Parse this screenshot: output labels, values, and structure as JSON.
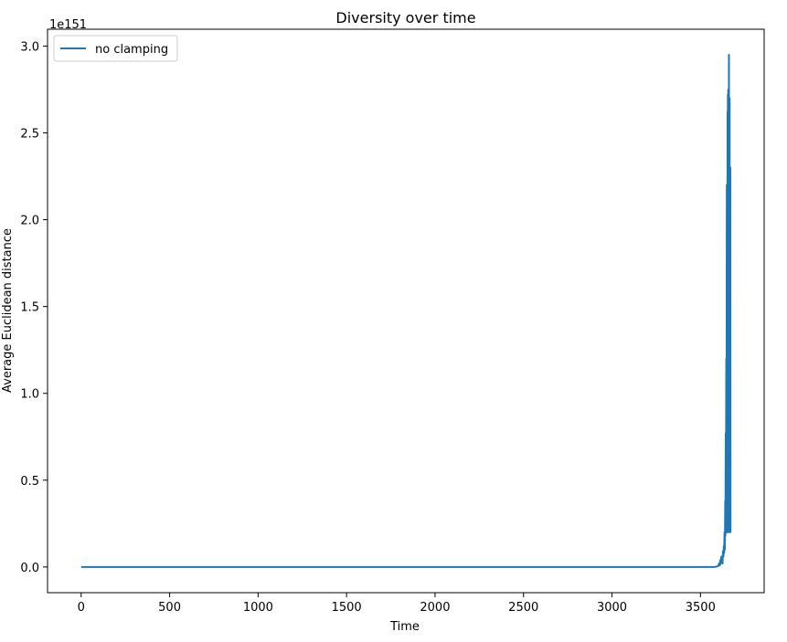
{
  "chart_data": {
    "type": "line",
    "title": "Diversity over time",
    "xlabel": "Time",
    "ylabel": "Average Euclidean distance",
    "y_offset_label": "1e151",
    "xlim": [
      -190,
      3860
    ],
    "ylim": [
      -0.148,
      3.097
    ],
    "x_ticks": [
      0,
      500,
      1000,
      1500,
      2000,
      2500,
      3000,
      3500
    ],
    "x_tick_labels": [
      "0",
      "500",
      "1000",
      "1500",
      "2000",
      "2500",
      "3000",
      "3500"
    ],
    "y_ticks": [
      0.0,
      0.5,
      1.0,
      1.5,
      2.0,
      2.5,
      3.0
    ],
    "y_tick_labels": [
      "0.0",
      "0.5",
      "1.0",
      "1.5",
      "2.0",
      "2.5",
      "3.0"
    ],
    "legend_position": "upper-left",
    "grid": false,
    "series": [
      {
        "name": "no clamping",
        "color": "#1f77b4",
        "x": [
          0,
          500,
          1000,
          1500,
          2000,
          2500,
          3000,
          3500,
          3580,
          3600,
          3605,
          3610,
          3612,
          3615,
          3618,
          3620,
          3622,
          3625,
          3627,
          3630,
          3632,
          3634,
          3636,
          3638,
          3640,
          3641,
          3643,
          3644,
          3646,
          3647,
          3649,
          3650,
          3651,
          3652,
          3653,
          3654,
          3655,
          3656,
          3657,
          3658,
          3659,
          3660,
          3661,
          3662,
          3663,
          3664,
          3665,
          3666,
          3667,
          3668,
          3669,
          3670
        ],
        "y": [
          0,
          0,
          0,
          0,
          0,
          0,
          0,
          0,
          0,
          0.005,
          0.02,
          0.01,
          0.04,
          0.02,
          0.06,
          0.03,
          0.05,
          0.02,
          0.09,
          0.06,
          0.12,
          0.08,
          0.2,
          0.1,
          0.38,
          0.18,
          0.77,
          0.3,
          1.2,
          0.44,
          2.2,
          0.2,
          1.5,
          0.25,
          2.62,
          0.3,
          2.72,
          0.35,
          2.75,
          0.2,
          2.48,
          0.25,
          2.95,
          0.3,
          2.2,
          0.4,
          2.7,
          0.25,
          2.1,
          0.2,
          2.3,
          0.2
        ]
      }
    ]
  }
}
